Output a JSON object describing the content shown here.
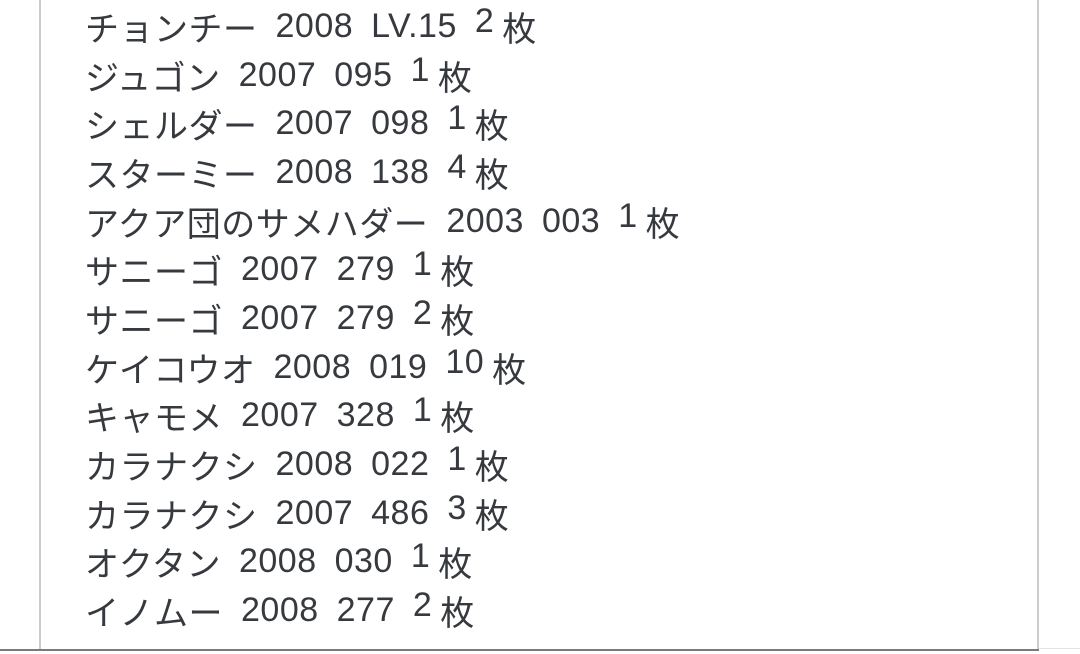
{
  "page": {
    "background": "#ffffff"
  },
  "colors": {
    "text": "#36393e",
    "side_rule": "#cbcbcb",
    "bottom_rule": "#7b7b7b",
    "bottom_rule_faint": "#e3e3e3"
  },
  "list": {
    "copies_suffix": "枚",
    "items": [
      {
        "name": "チョンチー",
        "year": "2008",
        "number": "LV.15",
        "copies": "2"
      },
      {
        "name": "ジュゴン",
        "year": "2007",
        "number": "095",
        "copies": "1"
      },
      {
        "name": "シェルダー",
        "year": "2007",
        "number": "098",
        "copies": "1"
      },
      {
        "name": "スターミー",
        "year": "2008",
        "number": "138",
        "copies": "4"
      },
      {
        "name": "アクア団のサメハダー",
        "year": "2003",
        "number": "003",
        "copies": "1"
      },
      {
        "name": "サニーゴ",
        "year": "2007",
        "number": "279",
        "copies": "1"
      },
      {
        "name": "サニーゴ",
        "year": "2007",
        "number": "279",
        "copies": "2"
      },
      {
        "name": "ケイコウオ",
        "year": "2008",
        "number": "019",
        "copies": "10"
      },
      {
        "name": "キャモメ",
        "year": "2007",
        "number": "328",
        "copies": "1"
      },
      {
        "name": "カラナクシ",
        "year": "2008",
        "number": "022",
        "copies": "1"
      },
      {
        "name": "カラナクシ",
        "year": "2007",
        "number": "486",
        "copies": "3"
      },
      {
        "name": "オクタン",
        "year": "2008",
        "number": "030",
        "copies": "1"
      },
      {
        "name": "イノムー",
        "year": "2008",
        "number": "277",
        "copies": "2"
      }
    ]
  }
}
